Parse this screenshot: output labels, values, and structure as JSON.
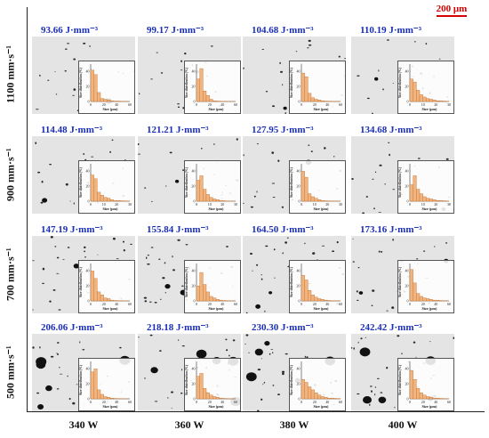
{
  "scale_bar": {
    "label": "200 μm",
    "color": "#d40000"
  },
  "row_labels": [
    "1100 mm·s⁻¹",
    "900 mm·s⁻¹",
    "700 mm·s⁻¹",
    "500 mm·s⁻¹"
  ],
  "col_labels": [
    "340 W",
    "360 W",
    "380 W",
    "400 W"
  ],
  "energy_densities": [
    [
      "93.66  J·mm⁻³",
      "99.17  J·mm⁻³",
      "104.68  J·mm⁻³",
      "110.19  J·mm⁻³"
    ],
    [
      "114.48  J·mm⁻³",
      "121.21  J·mm⁻³",
      "127.95  J·mm⁻³",
      "134.68  J·mm⁻³"
    ],
    [
      "147.19  J·mm⁻³",
      "155.84  J·mm⁻³",
      "164.50  J·mm⁻³",
      "173.16  J·mm⁻³"
    ],
    [
      "206.06  J·mm⁻³",
      "218.18  J·mm⁻³",
      "230.30  J·mm⁻³",
      "242.42  J·mm⁻³"
    ]
  ],
  "inset_axes": {
    "xlabel": "Size (μm)",
    "ylabel": "Size distribution (%)"
  },
  "colors": {
    "bar": "#f2b47e",
    "bar_edge": "#c07030",
    "energy_text": "#1a2fb8"
  },
  "chart_data": [
    {
      "type": "bar",
      "xticks": [
        "0",
        "20",
        "40",
        "60"
      ],
      "yticks": [
        "0",
        "20",
        "40"
      ],
      "values": [
        42,
        36,
        12,
        4,
        3,
        2,
        1,
        0.5,
        0.5,
        0.3,
        0.2,
        0.1
      ]
    },
    {
      "type": "bar",
      "xticks": [
        "0",
        "20",
        "40",
        "60"
      ],
      "yticks": [
        "0",
        "20",
        "40"
      ],
      "values": [
        30,
        44,
        14,
        8,
        3,
        1,
        0.5,
        0.3,
        0.2,
        0.1,
        0.1,
        0.1
      ]
    },
    {
      "type": "bar",
      "xticks": [
        "0",
        "20",
        "40",
        "60"
      ],
      "yticks": [
        "0",
        "20",
        "40"
      ],
      "values": [
        38,
        33,
        11,
        5,
        3,
        2,
        1,
        0.5,
        0.3,
        0.2,
        0.1,
        0.1
      ]
    },
    {
      "type": "bar",
      "xticks": [
        "0",
        "10",
        "20",
        "30"
      ],
      "yticks": [
        "0",
        "20",
        "40"
      ],
      "values": [
        30,
        26,
        15,
        9,
        6,
        4,
        3,
        2,
        1,
        1,
        0.5,
        0.3
      ]
    },
    {
      "type": "bar",
      "xticks": [
        "0",
        "10",
        "20",
        "30"
      ],
      "yticks": [
        "0",
        "20",
        "40"
      ],
      "values": [
        35,
        30,
        12,
        8,
        5,
        4,
        2,
        1,
        1,
        0.5,
        0.3,
        0.2
      ]
    },
    {
      "type": "bar",
      "xticks": [
        "0",
        "10",
        "20",
        "30"
      ],
      "yticks": [
        "0",
        "20",
        "40"
      ],
      "values": [
        28,
        34,
        16,
        9,
        5,
        3,
        2,
        1,
        0.5,
        0.3,
        0.2,
        0.1
      ]
    },
    {
      "type": "bar",
      "xticks": [
        "0",
        "10",
        "20",
        "30"
      ],
      "yticks": [
        "0",
        "20",
        "40"
      ],
      "values": [
        40,
        32,
        10,
        6,
        4,
        2,
        1,
        0.5,
        0.3,
        0.2,
        0.1,
        0.1
      ]
    },
    {
      "type": "bar",
      "xticks": [
        "0",
        "10",
        "20",
        "30"
      ],
      "yticks": [
        "0",
        "20",
        "40"
      ],
      "values": [
        22,
        34,
        16,
        10,
        6,
        4,
        3,
        2,
        1,
        1,
        0.5,
        0.3
      ]
    },
    {
      "type": "bar",
      "xticks": [
        "0",
        "20",
        "40",
        "60"
      ],
      "yticks": [
        "0",
        "20",
        "40"
      ],
      "values": [
        40,
        30,
        12,
        8,
        4,
        3,
        1,
        0.5,
        0.3,
        0.2,
        0.1,
        0.1
      ]
    },
    {
      "type": "bar",
      "xticks": [
        "0",
        "20",
        "40",
        "60"
      ],
      "yticks": [
        "0",
        "20",
        "40"
      ],
      "values": [
        20,
        38,
        22,
        12,
        6,
        4,
        2,
        1,
        0.5,
        0.3,
        0.2,
        0.1
      ]
    },
    {
      "type": "bar",
      "xticks": [
        "0",
        "20",
        "40",
        "60"
      ],
      "yticks": [
        "0",
        "20",
        "40"
      ],
      "values": [
        34,
        28,
        14,
        8,
        5,
        3,
        2,
        1,
        0.5,
        0.3,
        0.2,
        0.1
      ]
    },
    {
      "type": "bar",
      "xticks": [
        "0",
        "20",
        "40",
        "60"
      ],
      "yticks": [
        "0",
        "20",
        "40"
      ],
      "values": [
        42,
        24,
        10,
        6,
        4,
        3,
        2,
        1,
        1,
        0.5,
        0.3,
        0.2
      ]
    },
    {
      "type": "bar",
      "xticks": [
        "0",
        "20",
        "40",
        "60"
      ],
      "yticks": [
        "0",
        "20",
        "40"
      ],
      "values": [
        36,
        40,
        12,
        6,
        3,
        2,
        1,
        0.5,
        0.3,
        0.2,
        0.1,
        0.1
      ]
    },
    {
      "type": "bar",
      "xticks": [
        "0",
        "20",
        "40",
        "60"
      ],
      "yticks": [
        "0",
        "20",
        "40"
      ],
      "values": [
        30,
        34,
        14,
        8,
        5,
        3,
        2,
        1,
        0.5,
        0.3,
        0.2,
        0.1
      ]
    },
    {
      "type": "bar",
      "xticks": [
        "0",
        "20",
        "40",
        "60"
      ],
      "yticks": [
        "0",
        "20",
        "40"
      ],
      "values": [
        26,
        22,
        16,
        12,
        8,
        5,
        3,
        2,
        1,
        1,
        0.5,
        0.3
      ]
    },
    {
      "type": "bar",
      "xticks": [
        "0",
        "20",
        "40",
        "60"
      ],
      "yticks": [
        "0",
        "20",
        "40"
      ],
      "values": [
        38,
        26,
        14,
        8,
        5,
        3,
        2,
        1,
        1,
        0.5,
        0.3,
        0.2
      ]
    }
  ]
}
